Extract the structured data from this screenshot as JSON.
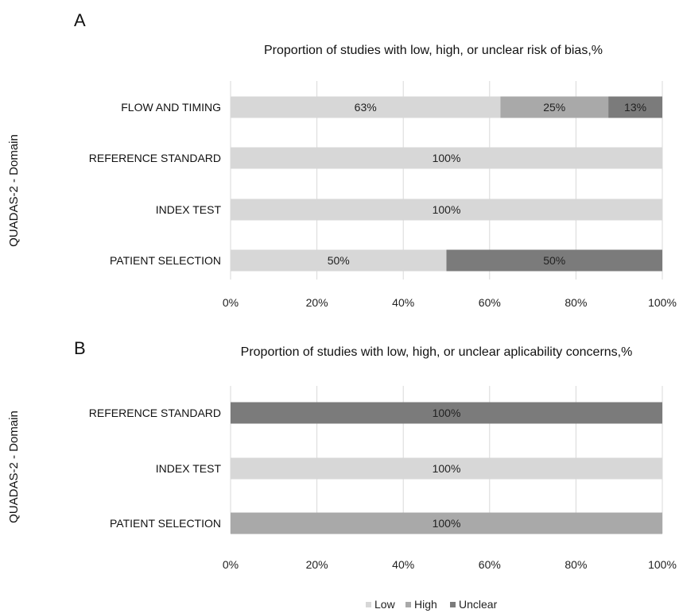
{
  "colors": {
    "Low": "#d7d7d7",
    "High": "#a9a9a9",
    "Unclear": "#7b7b7b",
    "grid": "#d9d9d9"
  },
  "legend": [
    {
      "name": "Low"
    },
    {
      "name": "High"
    },
    {
      "name": "Unclear"
    }
  ],
  "chart_data": [
    {
      "type": "bar",
      "stacked": true,
      "orientation": "horizontal",
      "panel_label": "A",
      "title": "Proportion of studies with low, high, or unclear risk of bias,%",
      "ylabel": "QUADAS-2 - Domain",
      "xlim": [
        0,
        100
      ],
      "x_ticks": [
        "0%",
        "20%",
        "40%",
        "60%",
        "80%",
        "100%"
      ],
      "grid": true,
      "legend_position": "bottom",
      "categories": [
        "FLOW AND TIMING",
        "REFERENCE STANDARD",
        "INDEX TEST",
        "PATIENT SELECTION"
      ],
      "series": [
        {
          "name": "Low",
          "values": [
            62.5,
            100,
            100,
            50
          ],
          "labels": [
            "63%",
            "100%",
            "100%",
            "50%"
          ]
        },
        {
          "name": "High",
          "values": [
            25,
            0,
            0,
            0
          ],
          "labels": [
            "25%",
            "",
            "",
            ""
          ]
        },
        {
          "name": "Unclear",
          "values": [
            12.5,
            0,
            0,
            50
          ],
          "labels": [
            "13%",
            "",
            "",
            "50%"
          ]
        }
      ]
    },
    {
      "type": "bar",
      "stacked": true,
      "orientation": "horizontal",
      "panel_label": "B",
      "title": "Proportion of studies with low, high, or unclear aplicability concerns,%",
      "ylabel": "QUADAS-2 - Domain",
      "xlim": [
        0,
        100
      ],
      "x_ticks": [
        "0%",
        "20%",
        "40%",
        "60%",
        "80%",
        "100%"
      ],
      "grid": true,
      "legend_position": "bottom",
      "categories": [
        "REFERENCE STANDARD",
        "INDEX TEST",
        "PATIENT SELECTION"
      ],
      "series": [
        {
          "name": "Low",
          "values": [
            0,
            100,
            0
          ],
          "labels": [
            "",
            "100%",
            ""
          ]
        },
        {
          "name": "High",
          "values": [
            0,
            0,
            100
          ],
          "labels": [
            "",
            "",
            "100%"
          ]
        },
        {
          "name": "Unclear",
          "values": [
            100,
            0,
            0
          ],
          "labels": [
            "100%",
            "",
            ""
          ]
        }
      ]
    }
  ]
}
